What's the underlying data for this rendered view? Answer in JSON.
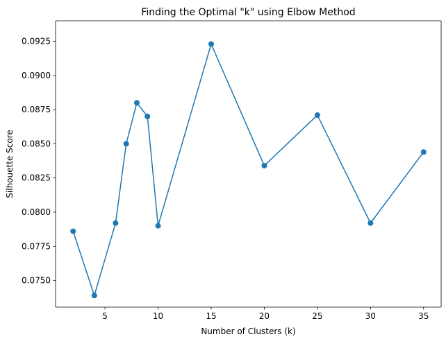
{
  "chart_data": {
    "type": "line",
    "title": "Finding the Optimal \"k\" using Elbow Method",
    "xlabel": "Number of Clusters (k)",
    "ylabel": "Silhouette Score",
    "xlim": [
      0.35,
      36.65
    ],
    "ylim": [
      0.07305,
      0.094
    ],
    "x_ticks": [
      5,
      10,
      15,
      20,
      25,
      30,
      35
    ],
    "y_ticks": [
      0.075,
      0.0775,
      0.08,
      0.0825,
      0.085,
      0.0875,
      0.09,
      0.0925
    ],
    "y_tick_labels": [
      "0.0750",
      "0.0775",
      "0.0800",
      "0.0825",
      "0.0850",
      "0.0875",
      "0.0900",
      "0.0925"
    ],
    "grid": false,
    "series": [
      {
        "color": "#1f77b4",
        "marker": "circle",
        "x": [
          2,
          4,
          6,
          7,
          8,
          9,
          10,
          15,
          20,
          25,
          30,
          35
        ],
        "y": [
          0.0786,
          0.0739,
          0.0792,
          0.085,
          0.088,
          0.087,
          0.079,
          0.0923,
          0.0834,
          0.0871,
          0.0792,
          0.0844
        ]
      }
    ]
  }
}
